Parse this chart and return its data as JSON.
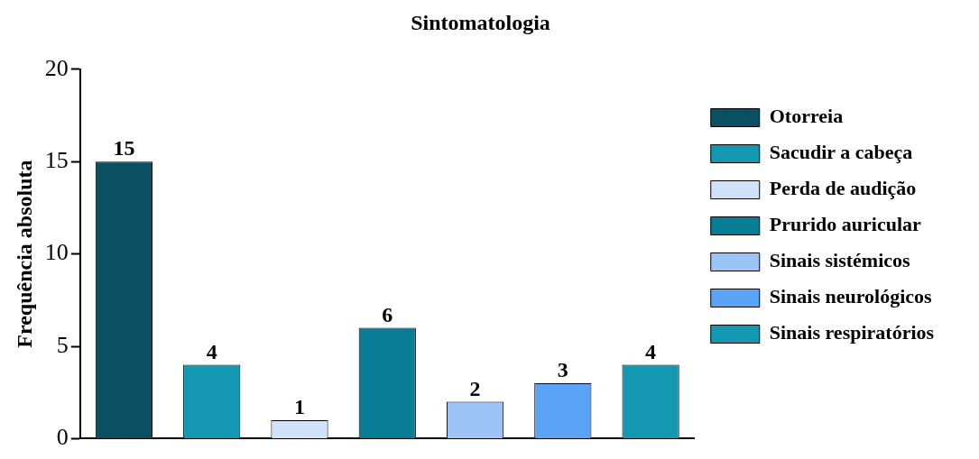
{
  "chart_data": {
    "type": "bar",
    "title": "Sintomatologia",
    "ylabel": "Frequência absoluta",
    "categories": [
      null,
      null,
      null,
      null,
      null,
      null,
      null
    ],
    "series": [
      {
        "name": "Otorreia",
        "color": "#0b4f63",
        "values": [
          15,
          null,
          null,
          null,
          null,
          null,
          null
        ]
      },
      {
        "name": "Sacudir a cabeça",
        "color": "#1497b0",
        "values": [
          null,
          4,
          null,
          null,
          null,
          null,
          null
        ]
      },
      {
        "name": "Perda de audição",
        "color": "#cfe2f7",
        "values": [
          null,
          null,
          1,
          null,
          null,
          null,
          null
        ]
      },
      {
        "name": "Prurido auricular",
        "color": "#0a7d96",
        "values": [
          null,
          null,
          null,
          6,
          null,
          null,
          null
        ]
      },
      {
        "name": "Sinais sistémicos",
        "color": "#9cc4f6",
        "values": [
          null,
          null,
          null,
          null,
          2,
          null,
          null
        ]
      },
      {
        "name": "Sinais neurológicos",
        "color": "#5aa3f7",
        "values": [
          null,
          null,
          null,
          null,
          null,
          3,
          null
        ]
      },
      {
        "name": "Sinais respiratórios",
        "color": "#1497b0",
        "values": [
          null,
          null,
          null,
          null,
          null,
          null,
          4
        ]
      }
    ],
    "ylim": [
      0,
      20
    ],
    "yticks": [
      0,
      5,
      10,
      15,
      20
    ],
    "grid": false,
    "legend": "right",
    "tick_labels": "y",
    "data_labels": true
  }
}
